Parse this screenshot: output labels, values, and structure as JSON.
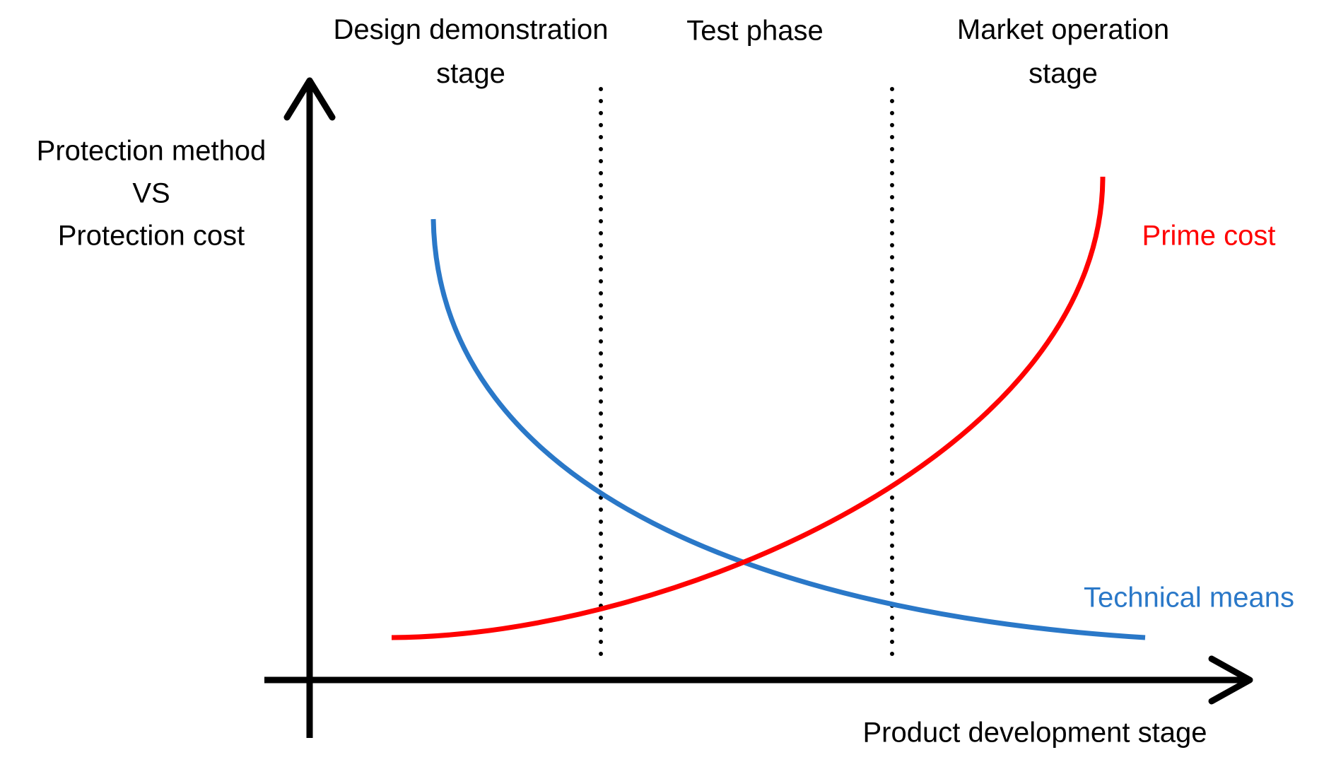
{
  "stages": [
    "Design demonstration stage",
    "Test phase",
    "Market operation stage"
  ],
  "y_axis_label": [
    "Protection method",
    "VS",
    "Protection cost"
  ],
  "x_axis_label": "Product development stage",
  "curves": [
    {
      "label": "Prime cost"
    },
    {
      "label": "Technical means"
    }
  ]
}
